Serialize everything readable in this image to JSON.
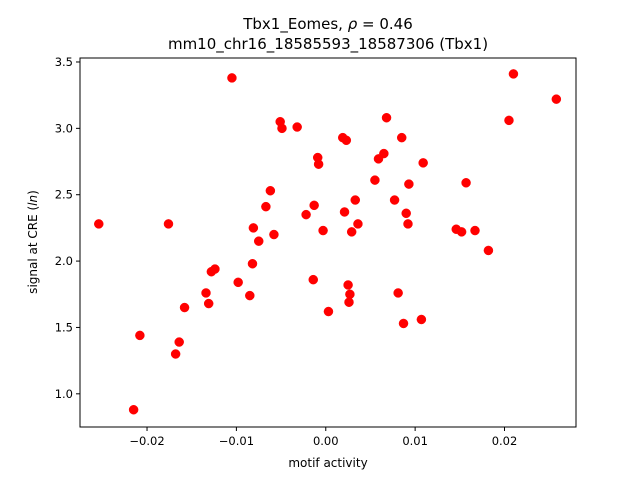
{
  "chart_data": {
    "type": "scatter",
    "title_line1_prefix": "Tbx1_Eomes, ",
    "title_line1_rho": "ρ",
    "title_line1_suffix": " = 0.46",
    "title_line2": "mm10_chr16_18585593_18587306 (Tbx1)",
    "xlabel": "motif activity",
    "ylabel_prefix": "signal at CRE (",
    "ylabel_ln": "ln",
    "ylabel_suffix": ")",
    "xlim": [
      -0.0275,
      0.028
    ],
    "ylim": [
      0.75,
      3.53
    ],
    "xticks": [
      -0.02,
      -0.01,
      0.0,
      0.01,
      0.02
    ],
    "xtick_labels": [
      "−0.02",
      "−0.01",
      "0.00",
      "0.01",
      "0.02"
    ],
    "yticks": [
      1.0,
      1.5,
      2.0,
      2.5,
      3.0,
      3.5
    ],
    "ytick_labels": [
      "1.0",
      "1.5",
      "2.0",
      "2.5",
      "3.0",
      "3.5"
    ],
    "marker_color": "#ff0000",
    "grid": false,
    "points": [
      {
        "x": -0.0254,
        "y": 2.28
      },
      {
        "x": -0.0215,
        "y": 0.88
      },
      {
        "x": -0.0208,
        "y": 1.44
      },
      {
        "x": -0.0176,
        "y": 2.28
      },
      {
        "x": -0.0168,
        "y": 1.3
      },
      {
        "x": -0.0164,
        "y": 1.39
      },
      {
        "x": -0.0158,
        "y": 1.65
      },
      {
        "x": -0.0134,
        "y": 1.76
      },
      {
        "x": -0.0131,
        "y": 1.68
      },
      {
        "x": -0.0128,
        "y": 1.92
      },
      {
        "x": -0.0124,
        "y": 1.94
      },
      {
        "x": -0.0105,
        "y": 3.38
      },
      {
        "x": -0.0098,
        "y": 1.84
      },
      {
        "x": -0.0085,
        "y": 1.74
      },
      {
        "x": -0.0082,
        "y": 1.98
      },
      {
        "x": -0.0081,
        "y": 2.25
      },
      {
        "x": -0.0075,
        "y": 2.15
      },
      {
        "x": -0.0067,
        "y": 2.41
      },
      {
        "x": -0.0062,
        "y": 2.53
      },
      {
        "x": -0.0058,
        "y": 2.2
      },
      {
        "x": -0.0051,
        "y": 3.05
      },
      {
        "x": -0.0049,
        "y": 3.0
      },
      {
        "x": -0.0032,
        "y": 3.01
      },
      {
        "x": -0.0022,
        "y": 2.35
      },
      {
        "x": -0.0014,
        "y": 1.86
      },
      {
        "x": -0.0013,
        "y": 2.42
      },
      {
        "x": -0.0009,
        "y": 2.78
      },
      {
        "x": -0.0008,
        "y": 2.73
      },
      {
        "x": -0.0003,
        "y": 2.23
      },
      {
        "x": 0.0003,
        "y": 1.62
      },
      {
        "x": 0.0019,
        "y": 2.93
      },
      {
        "x": 0.0021,
        "y": 2.37
      },
      {
        "x": 0.0023,
        "y": 2.91
      },
      {
        "x": 0.0025,
        "y": 1.82
      },
      {
        "x": 0.0026,
        "y": 1.69
      },
      {
        "x": 0.0027,
        "y": 1.75
      },
      {
        "x": 0.0029,
        "y": 2.22
      },
      {
        "x": 0.0033,
        "y": 2.46
      },
      {
        "x": 0.0036,
        "y": 2.28
      },
      {
        "x": 0.0055,
        "y": 2.61
      },
      {
        "x": 0.0059,
        "y": 2.77
      },
      {
        "x": 0.0065,
        "y": 2.81
      },
      {
        "x": 0.0068,
        "y": 3.08
      },
      {
        "x": 0.0077,
        "y": 2.46
      },
      {
        "x": 0.0081,
        "y": 1.76
      },
      {
        "x": 0.0085,
        "y": 2.93
      },
      {
        "x": 0.0087,
        "y": 1.53
      },
      {
        "x": 0.009,
        "y": 2.36
      },
      {
        "x": 0.0092,
        "y": 2.28
      },
      {
        "x": 0.0093,
        "y": 2.58
      },
      {
        "x": 0.0107,
        "y": 1.56
      },
      {
        "x": 0.0109,
        "y": 2.74
      },
      {
        "x": 0.0146,
        "y": 2.24
      },
      {
        "x": 0.0152,
        "y": 2.22
      },
      {
        "x": 0.0157,
        "y": 2.59
      },
      {
        "x": 0.0167,
        "y": 2.23
      },
      {
        "x": 0.0182,
        "y": 2.08
      },
      {
        "x": 0.0205,
        "y": 3.06
      },
      {
        "x": 0.021,
        "y": 3.41
      },
      {
        "x": 0.0258,
        "y": 3.22
      }
    ]
  }
}
